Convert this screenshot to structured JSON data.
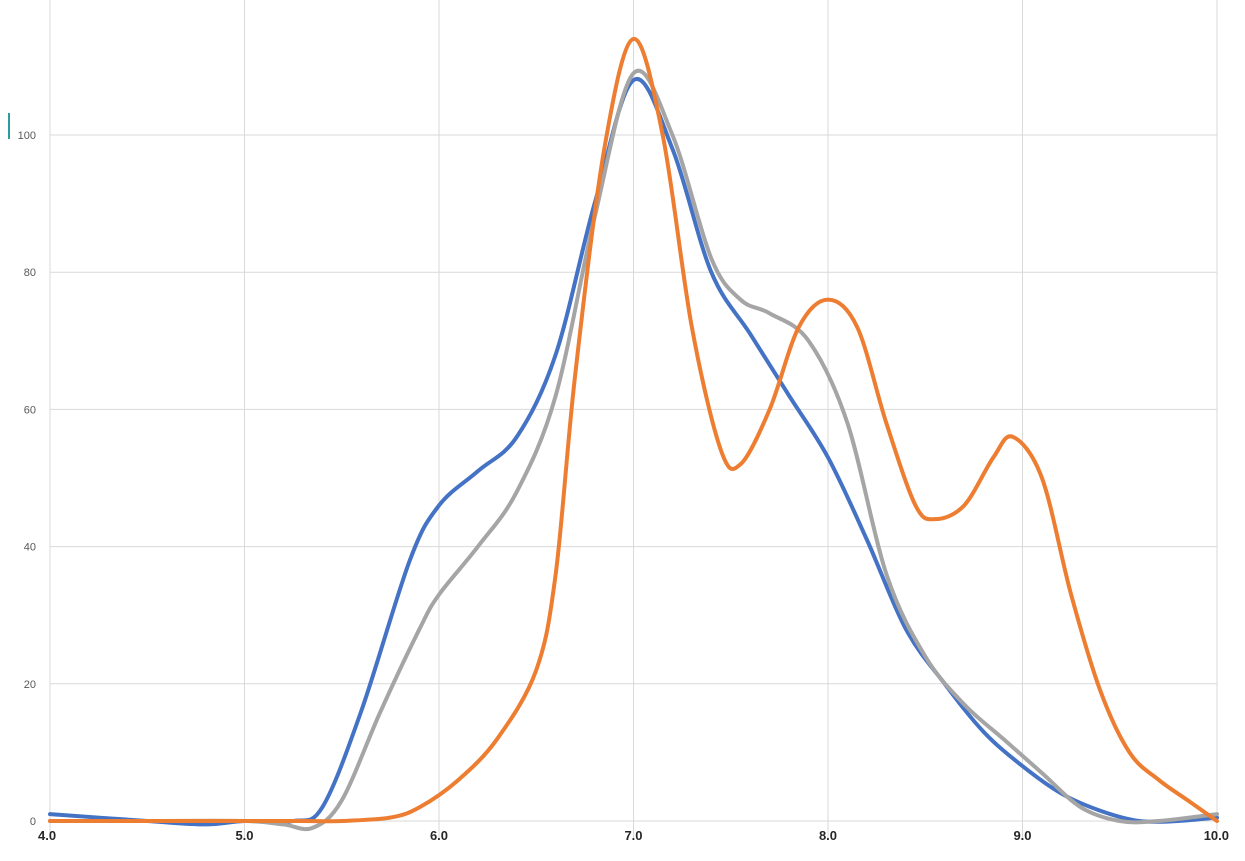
{
  "chart_data": {
    "type": "line",
    "title": "",
    "xlabel": "",
    "ylabel": "",
    "xlim": [
      4.0,
      10.0
    ],
    "ylim": [
      0,
      115
    ],
    "xticks": [
      4.0,
      5.0,
      6.0,
      7.0,
      8.0,
      9.0,
      10.0
    ],
    "xtick_labels": [
      "4.0",
      "5.0",
      "6.0",
      "7.0",
      "8.0",
      "9.0",
      "10.0"
    ],
    "yticks": [
      0,
      20,
      40,
      60,
      80,
      100
    ],
    "ytick_labels": [
      "0",
      "20",
      "40",
      "60",
      "80",
      "100"
    ],
    "grid": true,
    "legend": "none",
    "smooth": true,
    "series": [
      {
        "color": "#4472C4",
        "points": [
          [
            4.0,
            1
          ],
          [
            4.5,
            0
          ],
          [
            4.8,
            -0.5
          ],
          [
            5.0,
            0
          ],
          [
            5.25,
            0
          ],
          [
            5.4,
            2
          ],
          [
            5.6,
            16
          ],
          [
            5.85,
            38
          ],
          [
            6.0,
            46
          ],
          [
            6.2,
            51
          ],
          [
            6.4,
            56
          ],
          [
            6.6,
            68
          ],
          [
            6.8,
            90
          ],
          [
            7.0,
            108
          ],
          [
            7.2,
            98
          ],
          [
            7.4,
            80
          ],
          [
            7.6,
            71
          ],
          [
            7.8,
            62
          ],
          [
            8.0,
            53
          ],
          [
            8.2,
            41
          ],
          [
            8.4,
            28
          ],
          [
            8.6,
            20
          ],
          [
            8.8,
            13
          ],
          [
            9.0,
            8
          ],
          [
            9.2,
            4
          ],
          [
            9.4,
            1.5
          ],
          [
            9.6,
            0
          ],
          [
            9.8,
            0
          ],
          [
            10.0,
            0.5
          ]
        ]
      },
      {
        "color": "#A5A5A5",
        "points": [
          [
            4.0,
            0
          ],
          [
            4.5,
            0
          ],
          [
            5.0,
            0
          ],
          [
            5.2,
            -0.5
          ],
          [
            5.35,
            -1
          ],
          [
            5.5,
            3
          ],
          [
            5.7,
            16
          ],
          [
            5.9,
            28
          ],
          [
            6.0,
            33
          ],
          [
            6.2,
            40
          ],
          [
            6.4,
            48
          ],
          [
            6.6,
            62
          ],
          [
            6.8,
            88
          ],
          [
            7.0,
            109
          ],
          [
            7.2,
            100
          ],
          [
            7.4,
            82
          ],
          [
            7.55,
            76
          ],
          [
            7.7,
            74
          ],
          [
            7.9,
            70
          ],
          [
            8.1,
            58
          ],
          [
            8.3,
            36
          ],
          [
            8.5,
            24
          ],
          [
            8.7,
            17
          ],
          [
            8.9,
            12
          ],
          [
            9.1,
            7
          ],
          [
            9.3,
            2
          ],
          [
            9.5,
            0
          ],
          [
            9.7,
            0
          ],
          [
            10.0,
            1
          ]
        ]
      },
      {
        "color": "#ED7D31",
        "points": [
          [
            4.0,
            0
          ],
          [
            4.5,
            0
          ],
          [
            5.0,
            0
          ],
          [
            5.3,
            0
          ],
          [
            5.5,
            0
          ],
          [
            5.75,
            0.5
          ],
          [
            5.9,
            2
          ],
          [
            6.1,
            6
          ],
          [
            6.3,
            12
          ],
          [
            6.5,
            22
          ],
          [
            6.6,
            36
          ],
          [
            6.7,
            65
          ],
          [
            6.85,
            98
          ],
          [
            7.0,
            114
          ],
          [
            7.15,
            100
          ],
          [
            7.3,
            72
          ],
          [
            7.45,
            54
          ],
          [
            7.55,
            52
          ],
          [
            7.7,
            60
          ],
          [
            7.85,
            72
          ],
          [
            8.0,
            76
          ],
          [
            8.15,
            72
          ],
          [
            8.3,
            58
          ],
          [
            8.45,
            46
          ],
          [
            8.55,
            44
          ],
          [
            8.7,
            46
          ],
          [
            8.85,
            53
          ],
          [
            8.95,
            56
          ],
          [
            9.1,
            50
          ],
          [
            9.25,
            33
          ],
          [
            9.4,
            19
          ],
          [
            9.55,
            10
          ],
          [
            9.7,
            6
          ],
          [
            9.85,
            3
          ],
          [
            10.0,
            0
          ]
        ]
      }
    ]
  }
}
